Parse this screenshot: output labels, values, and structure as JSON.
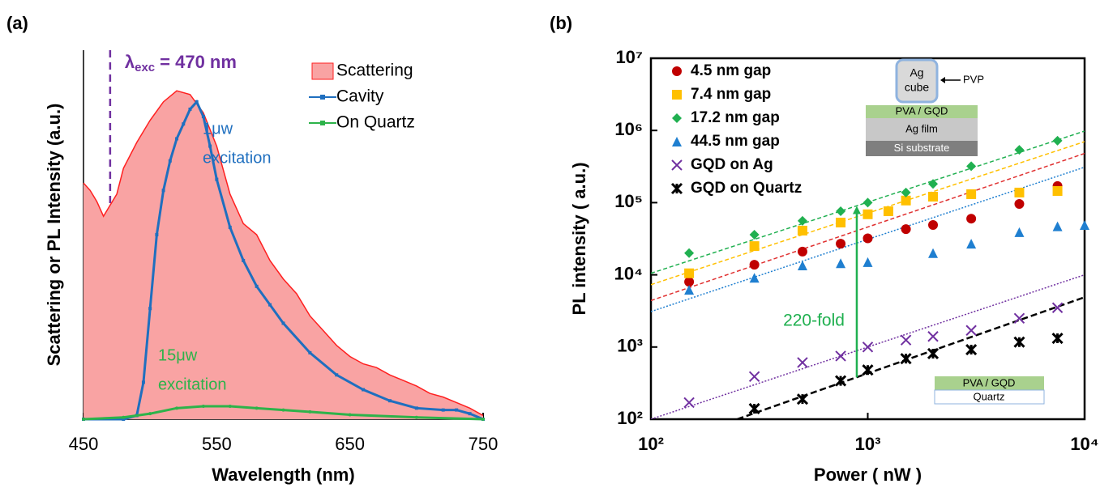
{
  "chart_data": [
    {
      "type": "line",
      "panel_label": "(a)",
      "x_label": "Wavelength (nm)",
      "y_label": "Scattering or PL Intensity (a.u.)",
      "xlim": [
        450,
        750
      ],
      "ylim": [
        0,
        1
      ],
      "xticks": [
        450,
        550,
        650,
        750
      ],
      "excitation": {
        "x": 470,
        "symbol": "λ",
        "subscript": "exc",
        "text": "= 470 nm",
        "color": "#7030a0"
      },
      "notes": [
        {
          "lines": [
            "1μw",
            "excitation"
          ],
          "color": "#1f6fbf"
        },
        {
          "lines": [
            "15μw",
            "excitation"
          ],
          "color": "#2db34a"
        }
      ],
      "series": [
        {
          "name": "Scattering",
          "color": "#ff2020",
          "fill": "#f9a3a3",
          "x": [
            450,
            455,
            460,
            465,
            470,
            475,
            480,
            490,
            500,
            510,
            520,
            530,
            540,
            550,
            560,
            570,
            580,
            590,
            600,
            610,
            620,
            630,
            640,
            650,
            660,
            670,
            680,
            690,
            700,
            710,
            720,
            730,
            740,
            750
          ],
          "values": [
            0.64,
            0.62,
            0.59,
            0.55,
            0.58,
            0.61,
            0.68,
            0.75,
            0.81,
            0.86,
            0.89,
            0.88,
            0.83,
            0.74,
            0.61,
            0.53,
            0.5,
            0.43,
            0.38,
            0.34,
            0.28,
            0.24,
            0.2,
            0.17,
            0.15,
            0.14,
            0.12,
            0.105,
            0.09,
            0.07,
            0.06,
            0.045,
            0.03,
            0.01
          ]
        },
        {
          "name": "Cavity",
          "color": "#1f6fbf",
          "marker": "square",
          "x": [
            450,
            480,
            490,
            495,
            500,
            505,
            510,
            515,
            520,
            525,
            530,
            535,
            540,
            545,
            550,
            560,
            570,
            580,
            590,
            600,
            620,
            640,
            660,
            680,
            700,
            720,
            730,
            740,
            750
          ],
          "values": [
            0,
            0,
            0.01,
            0.1,
            0.3,
            0.5,
            0.62,
            0.7,
            0.76,
            0.8,
            0.84,
            0.86,
            0.82,
            0.74,
            0.65,
            0.52,
            0.43,
            0.36,
            0.31,
            0.26,
            0.18,
            0.12,
            0.08,
            0.05,
            0.03,
            0.025,
            0.025,
            0.015,
            0
          ]
        },
        {
          "name": "On Quartz",
          "color": "#2db34a",
          "marker": "dot",
          "x": [
            450,
            480,
            500,
            520,
            540,
            560,
            580,
            600,
            620,
            650,
            700,
            750
          ],
          "values": [
            0,
            0.005,
            0.015,
            0.03,
            0.035,
            0.035,
            0.03,
            0.025,
            0.02,
            0.012,
            0.005,
            0
          ]
        }
      ]
    },
    {
      "type": "scatter",
      "panel_label": "(b)",
      "x_label": "Power ( nW )",
      "y_label": "PL intensity ( a.u.)",
      "xlog": true,
      "ylog": true,
      "xlim": [
        100,
        10000
      ],
      "ylim": [
        100,
        10000000
      ],
      "xticks": [
        {
          "value": 100,
          "label": "10²"
        },
        {
          "value": 1000,
          "label": "10³"
        },
        {
          "value": 10000,
          "label": "10⁴"
        }
      ],
      "yticks": [
        {
          "value": 100,
          "label": "10²"
        },
        {
          "value": 1000,
          "label": "10³"
        },
        {
          "value": 10000,
          "label": "10⁴"
        },
        {
          "value": 100000,
          "label": "10⁵"
        },
        {
          "value": 1000000,
          "label": "10⁶"
        },
        {
          "value": 10000000,
          "label": "10⁷"
        }
      ],
      "series": [
        {
          "name": "4.5 nm gap",
          "color": "#c00000",
          "marker": "circle",
          "x": [
            150,
            300,
            500,
            750,
            1000,
            1500,
            2000,
            3000,
            5000,
            7500
          ],
          "values": [
            8000,
            13800,
            21000,
            27000,
            32000,
            43000,
            49000,
            60000,
            96000,
            170000
          ]
        },
        {
          "name": "7.4 nm gap",
          "color": "#ffc000",
          "marker": "square",
          "x": [
            150,
            300,
            500,
            750,
            1000,
            1245,
            1500,
            2000,
            3000,
            5000,
            7500
          ],
          "values": [
            10500,
            25000,
            41000,
            53000,
            69000,
            76000,
            107000,
            121000,
            131000,
            138000,
            145000
          ]
        },
        {
          "name": "17.2 nm gap",
          "color": "#20b050",
          "marker": "diamond",
          "x": [
            150,
            300,
            500,
            750,
            1000,
            1500,
            2000,
            3000,
            5000,
            7500
          ],
          "values": [
            20000,
            36000,
            56000,
            76000,
            100000,
            138000,
            182000,
            320000,
            540000,
            720000
          ]
        },
        {
          "name": "44.5 nm gap",
          "color": "#1f7fd0",
          "marker": "triangle",
          "x": [
            150,
            300,
            500,
            750,
            1000,
            2000,
            3000,
            5000,
            7500,
            10000
          ],
          "values": [
            6200,
            9100,
            13500,
            14500,
            15000,
            20000,
            27000,
            39000,
            47000,
            49000
          ]
        },
        {
          "name": "GQD on Ag",
          "color": "#7030a0",
          "marker": "x",
          "x": [
            150,
            300,
            500,
            750,
            1000,
            1500,
            2000,
            3000,
            5000,
            7500
          ],
          "values": [
            170,
            390,
            610,
            750,
            1000,
            1250,
            1400,
            1700,
            2500,
            3500
          ]
        },
        {
          "name": "GQD on Quartz",
          "color": "#000000",
          "marker": "star",
          "x": [
            300,
            500,
            750,
            1000,
            1500,
            2000,
            3000,
            5000,
            7500
          ],
          "values": [
            140,
            190,
            340,
            480,
            690,
            810,
            920,
            1170,
            1320
          ]
        }
      ],
      "fits": [
        {
          "color": "#20b050",
          "dash": "5,3",
          "x": [
            100,
            10000
          ],
          "values": [
            10500,
            980000
          ]
        },
        {
          "color": "#ffc000",
          "dash": "5,3",
          "x": [
            100,
            10000
          ],
          "values": [
            7300,
            700000
          ]
        },
        {
          "color": "#e03030",
          "dash": "5,3",
          "x": [
            100,
            10000
          ],
          "values": [
            4400,
            480000
          ]
        },
        {
          "color": "#1f7fd0",
          "dash": "2,2",
          "x": [
            100,
            10000
          ],
          "values": [
            3100,
            310000
          ]
        },
        {
          "color": "#7030a0",
          "dash": "2,2",
          "x": [
            100,
            10000
          ],
          "values": [
            100,
            10000
          ]
        },
        {
          "color": "#000000",
          "dash": "8,4",
          "x": [
            250,
            10000
          ],
          "values": [
            100,
            4900
          ]
        }
      ],
      "arrow": {
        "text": "220-fold",
        "color": "#20b050",
        "x": 890,
        "values": [
          380,
          90000
        ]
      },
      "inset_top": {
        "cube": [
          "Ag",
          "cube"
        ],
        "pvp": "PVP",
        "layers": [
          "PVA / GQD",
          "Ag film",
          "Si substrate"
        ]
      },
      "inset_bottom": {
        "layers": [
          "PVA / GQD",
          "Quartz"
        ]
      }
    }
  ]
}
